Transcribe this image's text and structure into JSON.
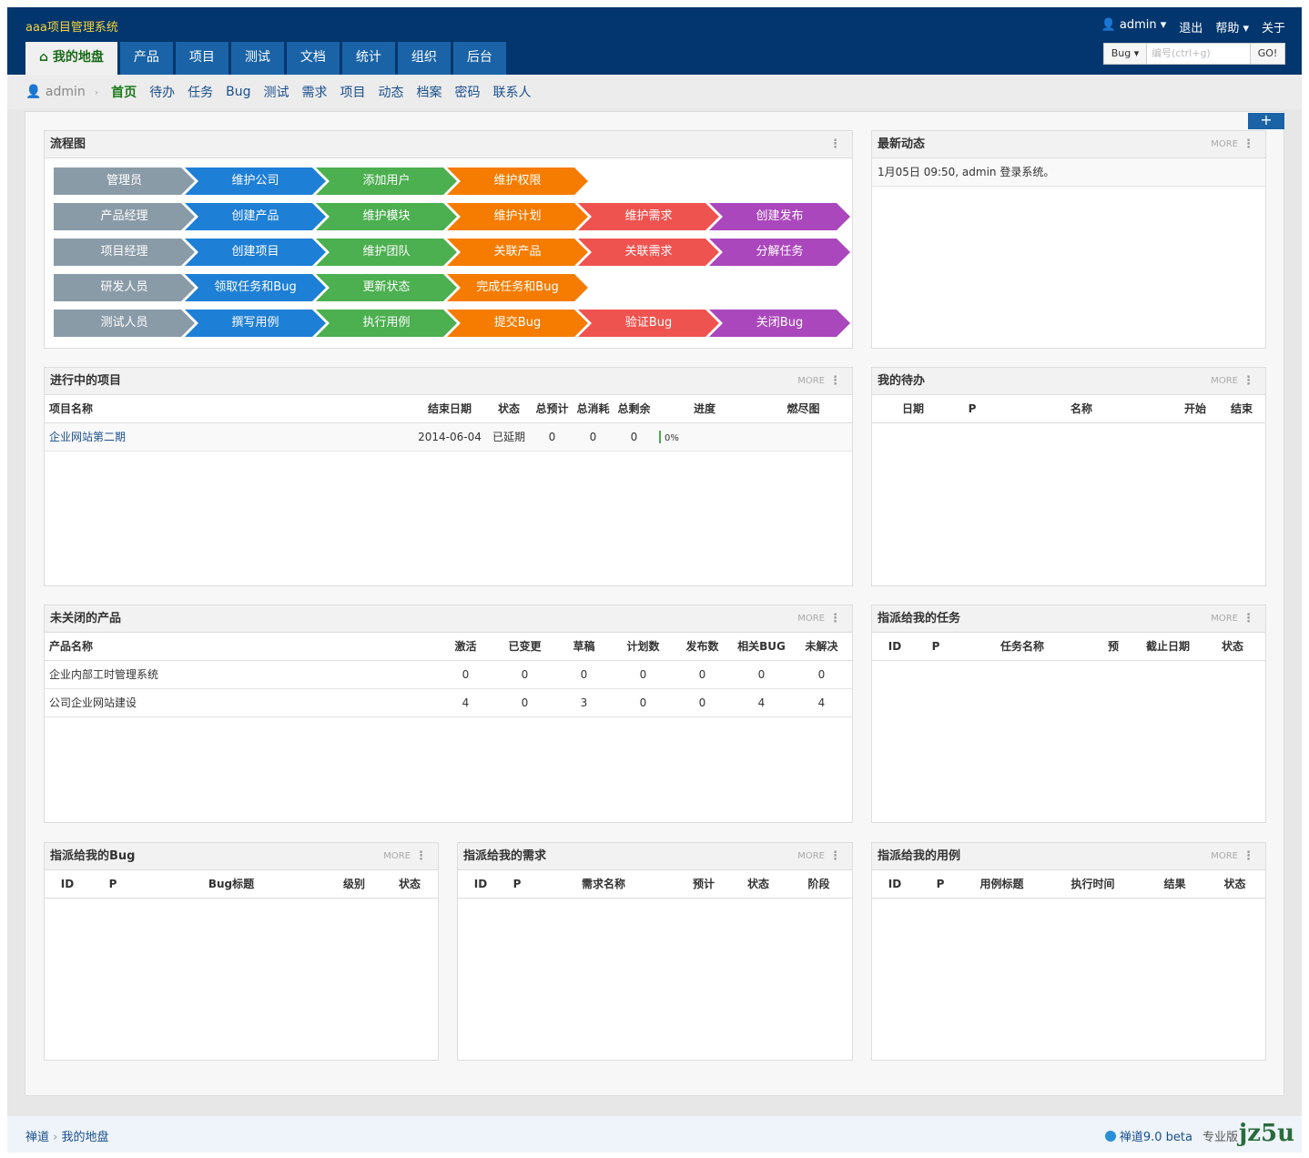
{
  "app": {
    "title": "aaa项目管理系统"
  },
  "topnav": {
    "user": "admin ▾",
    "logout": "退出",
    "help": "帮助 ▾",
    "about": "关于"
  },
  "main_tabs": [
    "我的地盘",
    "产品",
    "项目",
    "测试",
    "文档",
    "统计",
    "组织",
    "后台"
  ],
  "search": {
    "type": "Bug ▾",
    "placeholder": "编号(ctrl+g)",
    "go": "GO!"
  },
  "subnav": {
    "crumb": "admin",
    "items": [
      "首页",
      "待办",
      "任务",
      "Bug",
      "测试",
      "需求",
      "项目",
      "动态",
      "档案",
      "密码",
      "联系人"
    ]
  },
  "add_button": "+",
  "flow": {
    "title": "流程图",
    "rows": [
      [
        "管理员",
        "维护公司",
        "添加用户",
        "维护权限"
      ],
      [
        "产品经理",
        "创建产品",
        "维护模块",
        "维护计划",
        "维护需求",
        "创建发布"
      ],
      [
        "项目经理",
        "创建项目",
        "维护团队",
        "关联产品",
        "关联需求",
        "分解任务"
      ],
      [
        "研发人员",
        "领取任务和Bug",
        "更新状态",
        "完成任务和Bug"
      ],
      [
        "测试人员",
        "撰写用例",
        "执行用例",
        "提交Bug",
        "验证Bug",
        "关闭Bug"
      ]
    ]
  },
  "dynamic": {
    "title": "最新动态",
    "more": "MORE",
    "entry": "1月05日 09:50, admin 登录系统。"
  },
  "projects": {
    "title": "进行中的项目",
    "more": "MORE",
    "headers": [
      "项目名称",
      "结束日期",
      "状态",
      "总预计",
      "总消耗",
      "总剩余",
      "进度",
      "燃尽图"
    ],
    "rows": [
      {
        "name": "企业网站第二期",
        "end": "2014-06-04",
        "status": "已延期",
        "estimate": "0",
        "consumed": "0",
        "left": "0",
        "progress": "0%"
      }
    ]
  },
  "todo": {
    "title": "我的待办",
    "more": "MORE",
    "headers": [
      "日期",
      "P",
      "名称",
      "开始",
      "结束"
    ]
  },
  "products": {
    "title": "未关闭的产品",
    "more": "MORE",
    "headers": [
      "产品名称",
      "激活",
      "已变更",
      "草稿",
      "计划数",
      "发布数",
      "相关BUG",
      "未解决"
    ],
    "rows": [
      [
        "企业内部工时管理系统",
        "0",
        "0",
        "0",
        "0",
        "0",
        "0",
        "0"
      ],
      [
        "公司企业网站建设",
        "4",
        "0",
        "3",
        "0",
        "0",
        "4",
        "4"
      ]
    ]
  },
  "tasks": {
    "title": "指派给我的任务",
    "more": "MORE",
    "headers": [
      "ID",
      "P",
      "任务名称",
      "预",
      "截止日期",
      "状态"
    ]
  },
  "bugs": {
    "title": "指派给我的Bug",
    "more": "MORE",
    "headers": [
      "ID",
      "P",
      "Bug标题",
      "级别",
      "状态"
    ]
  },
  "stories": {
    "title": "指派给我的需求",
    "more": "MORE",
    "headers": [
      "ID",
      "P",
      "需求名称",
      "预计",
      "状态",
      "阶段"
    ]
  },
  "cases": {
    "title": "指派给我的用例",
    "more": "MORE",
    "headers": [
      "ID",
      "P",
      "用例标题",
      "执行时间",
      "结果",
      "状态"
    ]
  },
  "footer": {
    "crumb1": "禅道",
    "crumb2": "我的地盘",
    "version": "禅道9.0 beta",
    "edition": "专业版",
    "logo": "jz5u"
  },
  "colors": {
    "header": "#03366e",
    "tab": "#1a63a7",
    "flow": [
      "#8a9ba8",
      "#1e7fd6",
      "#4caf50",
      "#f57c00",
      "#ef5350",
      "#ab47bc"
    ]
  }
}
